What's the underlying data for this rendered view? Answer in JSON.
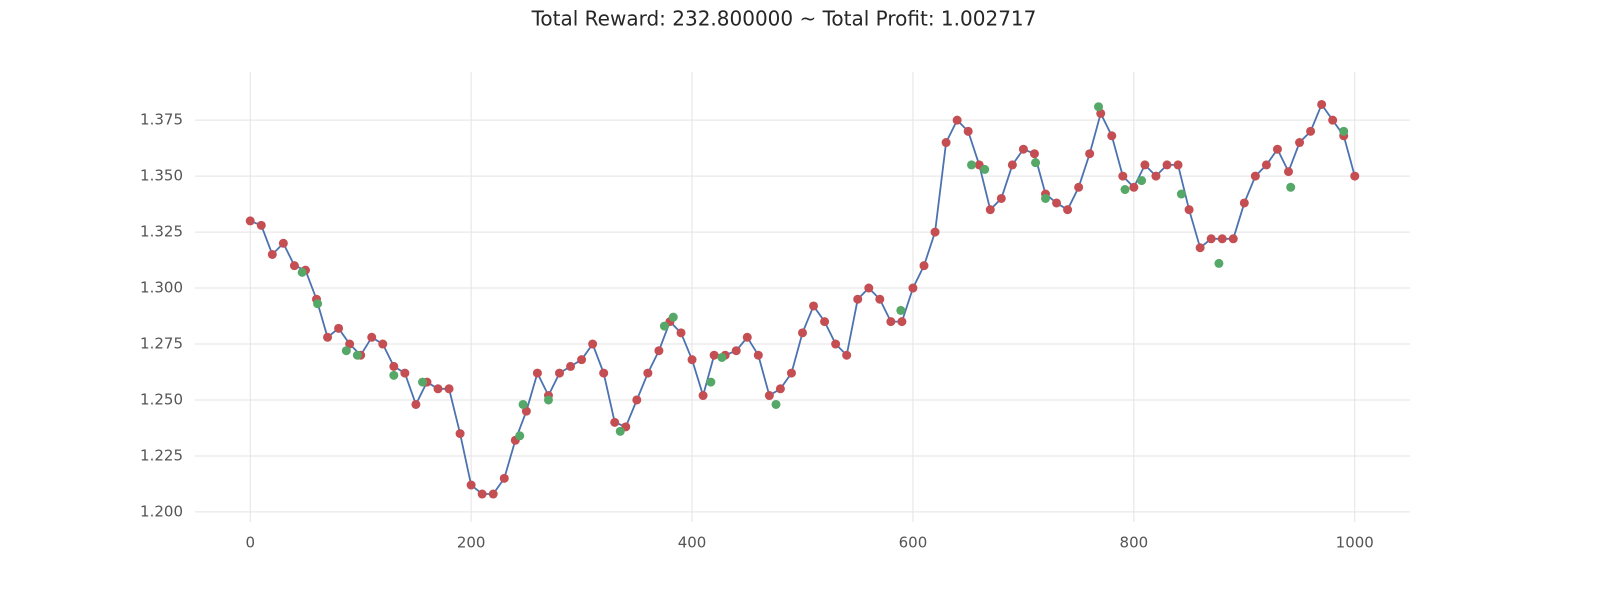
{
  "chart_data": {
    "type": "line",
    "title": "Total Reward: 232.800000 ~ Total Profit: 1.002717",
    "xlim": [
      -50,
      1050
    ],
    "ylim": [
      1.1955,
      1.3965
    ],
    "xticks": [
      0,
      200,
      400,
      600,
      800,
      1000
    ],
    "yticks": [
      {
        "value": 1.2,
        "label": "1.200"
      },
      1.225,
      {
        "value": 1.25,
        "label": "1.250"
      },
      1.275,
      {
        "value": 1.3,
        "label": "1.300"
      },
      1.325,
      {
        "value": 1.35,
        "label": "1.350"
      },
      1.375
    ],
    "grid": true,
    "series": [
      {
        "color": "#4c72b0",
        "marker_color": "#c44e52",
        "x": [
          0,
          10,
          20,
          30,
          40,
          50,
          60,
          70,
          80,
          90,
          100,
          110,
          120,
          130,
          140,
          150,
          160,
          170,
          180,
          190,
          200,
          210,
          220,
          230,
          240,
          250,
          260,
          270,
          280,
          290,
          300,
          310,
          320,
          330,
          340,
          350,
          360,
          370,
          380,
          390,
          400,
          410,
          420,
          430,
          440,
          450,
          460,
          470,
          480,
          490,
          500,
          510,
          520,
          530,
          540,
          550,
          560,
          570,
          580,
          590,
          600,
          610,
          620,
          630,
          640,
          650,
          660,
          670,
          680,
          690,
          700,
          710,
          720,
          730,
          740,
          750,
          760,
          770,
          780,
          790,
          800,
          810,
          820,
          830,
          840,
          850,
          860,
          870,
          880,
          890,
          900,
          910,
          920,
          930,
          940,
          950,
          960,
          970,
          980,
          990,
          1000
        ],
        "values": [
          1.33,
          1.328,
          1.315,
          1.32,
          1.31,
          1.308,
          1.295,
          1.278,
          1.282,
          1.275,
          1.27,
          1.278,
          1.275,
          1.265,
          1.262,
          1.248,
          1.258,
          1.255,
          1.255,
          1.235,
          1.212,
          1.208,
          1.208,
          1.215,
          1.232,
          1.245,
          1.262,
          1.252,
          1.262,
          1.265,
          1.268,
          1.275,
          1.262,
          1.24,
          1.238,
          1.25,
          1.262,
          1.272,
          1.285,
          1.28,
          1.268,
          1.252,
          1.27,
          1.27,
          1.272,
          1.278,
          1.27,
          1.252,
          1.255,
          1.262,
          1.28,
          1.292,
          1.285,
          1.275,
          1.27,
          1.295,
          1.3,
          1.295,
          1.285,
          1.285,
          1.3,
          1.31,
          1.325,
          1.365,
          1.375,
          1.37,
          1.355,
          1.335,
          1.34,
          1.355,
          1.362,
          1.36,
          1.342,
          1.338,
          1.335,
          1.345,
          1.36,
          1.378,
          1.368,
          1.35,
          1.345,
          1.355,
          1.35,
          1.355,
          1.355,
          1.335,
          1.318,
          1.322,
          1.322,
          1.322,
          1.338,
          1.35,
          1.355,
          1.362,
          1.352,
          1.365,
          1.37,
          1.382,
          1.375,
          1.368,
          1.35
        ]
      },
      {
        "type": "scatter",
        "color": "#55a868",
        "x": [
          47,
          61,
          87,
          97,
          130,
          156,
          244,
          247,
          270,
          335,
          375,
          383,
          417,
          427,
          476,
          589,
          653,
          665,
          711,
          720,
          768,
          792,
          807,
          843,
          877,
          942,
          990
        ],
        "values": [
          1.307,
          1.293,
          1.272,
          1.27,
          1.261,
          1.258,
          1.234,
          1.248,
          1.25,
          1.236,
          1.283,
          1.287,
          1.258,
          1.269,
          1.248,
          1.29,
          1.355,
          1.353,
          1.356,
          1.34,
          1.381,
          1.344,
          1.348,
          1.342,
          1.311,
          1.345,
          1.37
        ]
      }
    ]
  }
}
